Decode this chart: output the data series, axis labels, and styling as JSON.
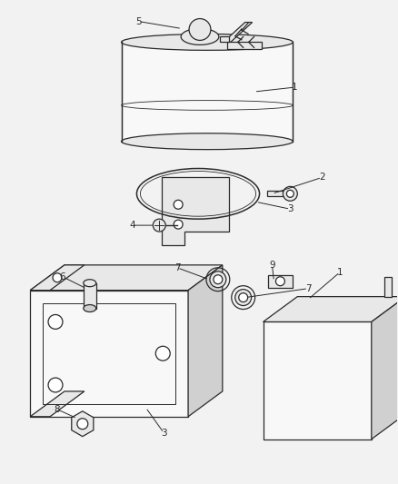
{
  "background_color": "#f2f2f2",
  "line_color": "#2a2a2a",
  "fill_light": "#f8f8f8",
  "fill_mid": "#e8e8e8",
  "fill_dark": "#d0d0d0",
  "figsize": [
    4.38,
    5.33
  ],
  "dpi": 100,
  "label_fontsize": 7.5,
  "lw": 0.9
}
